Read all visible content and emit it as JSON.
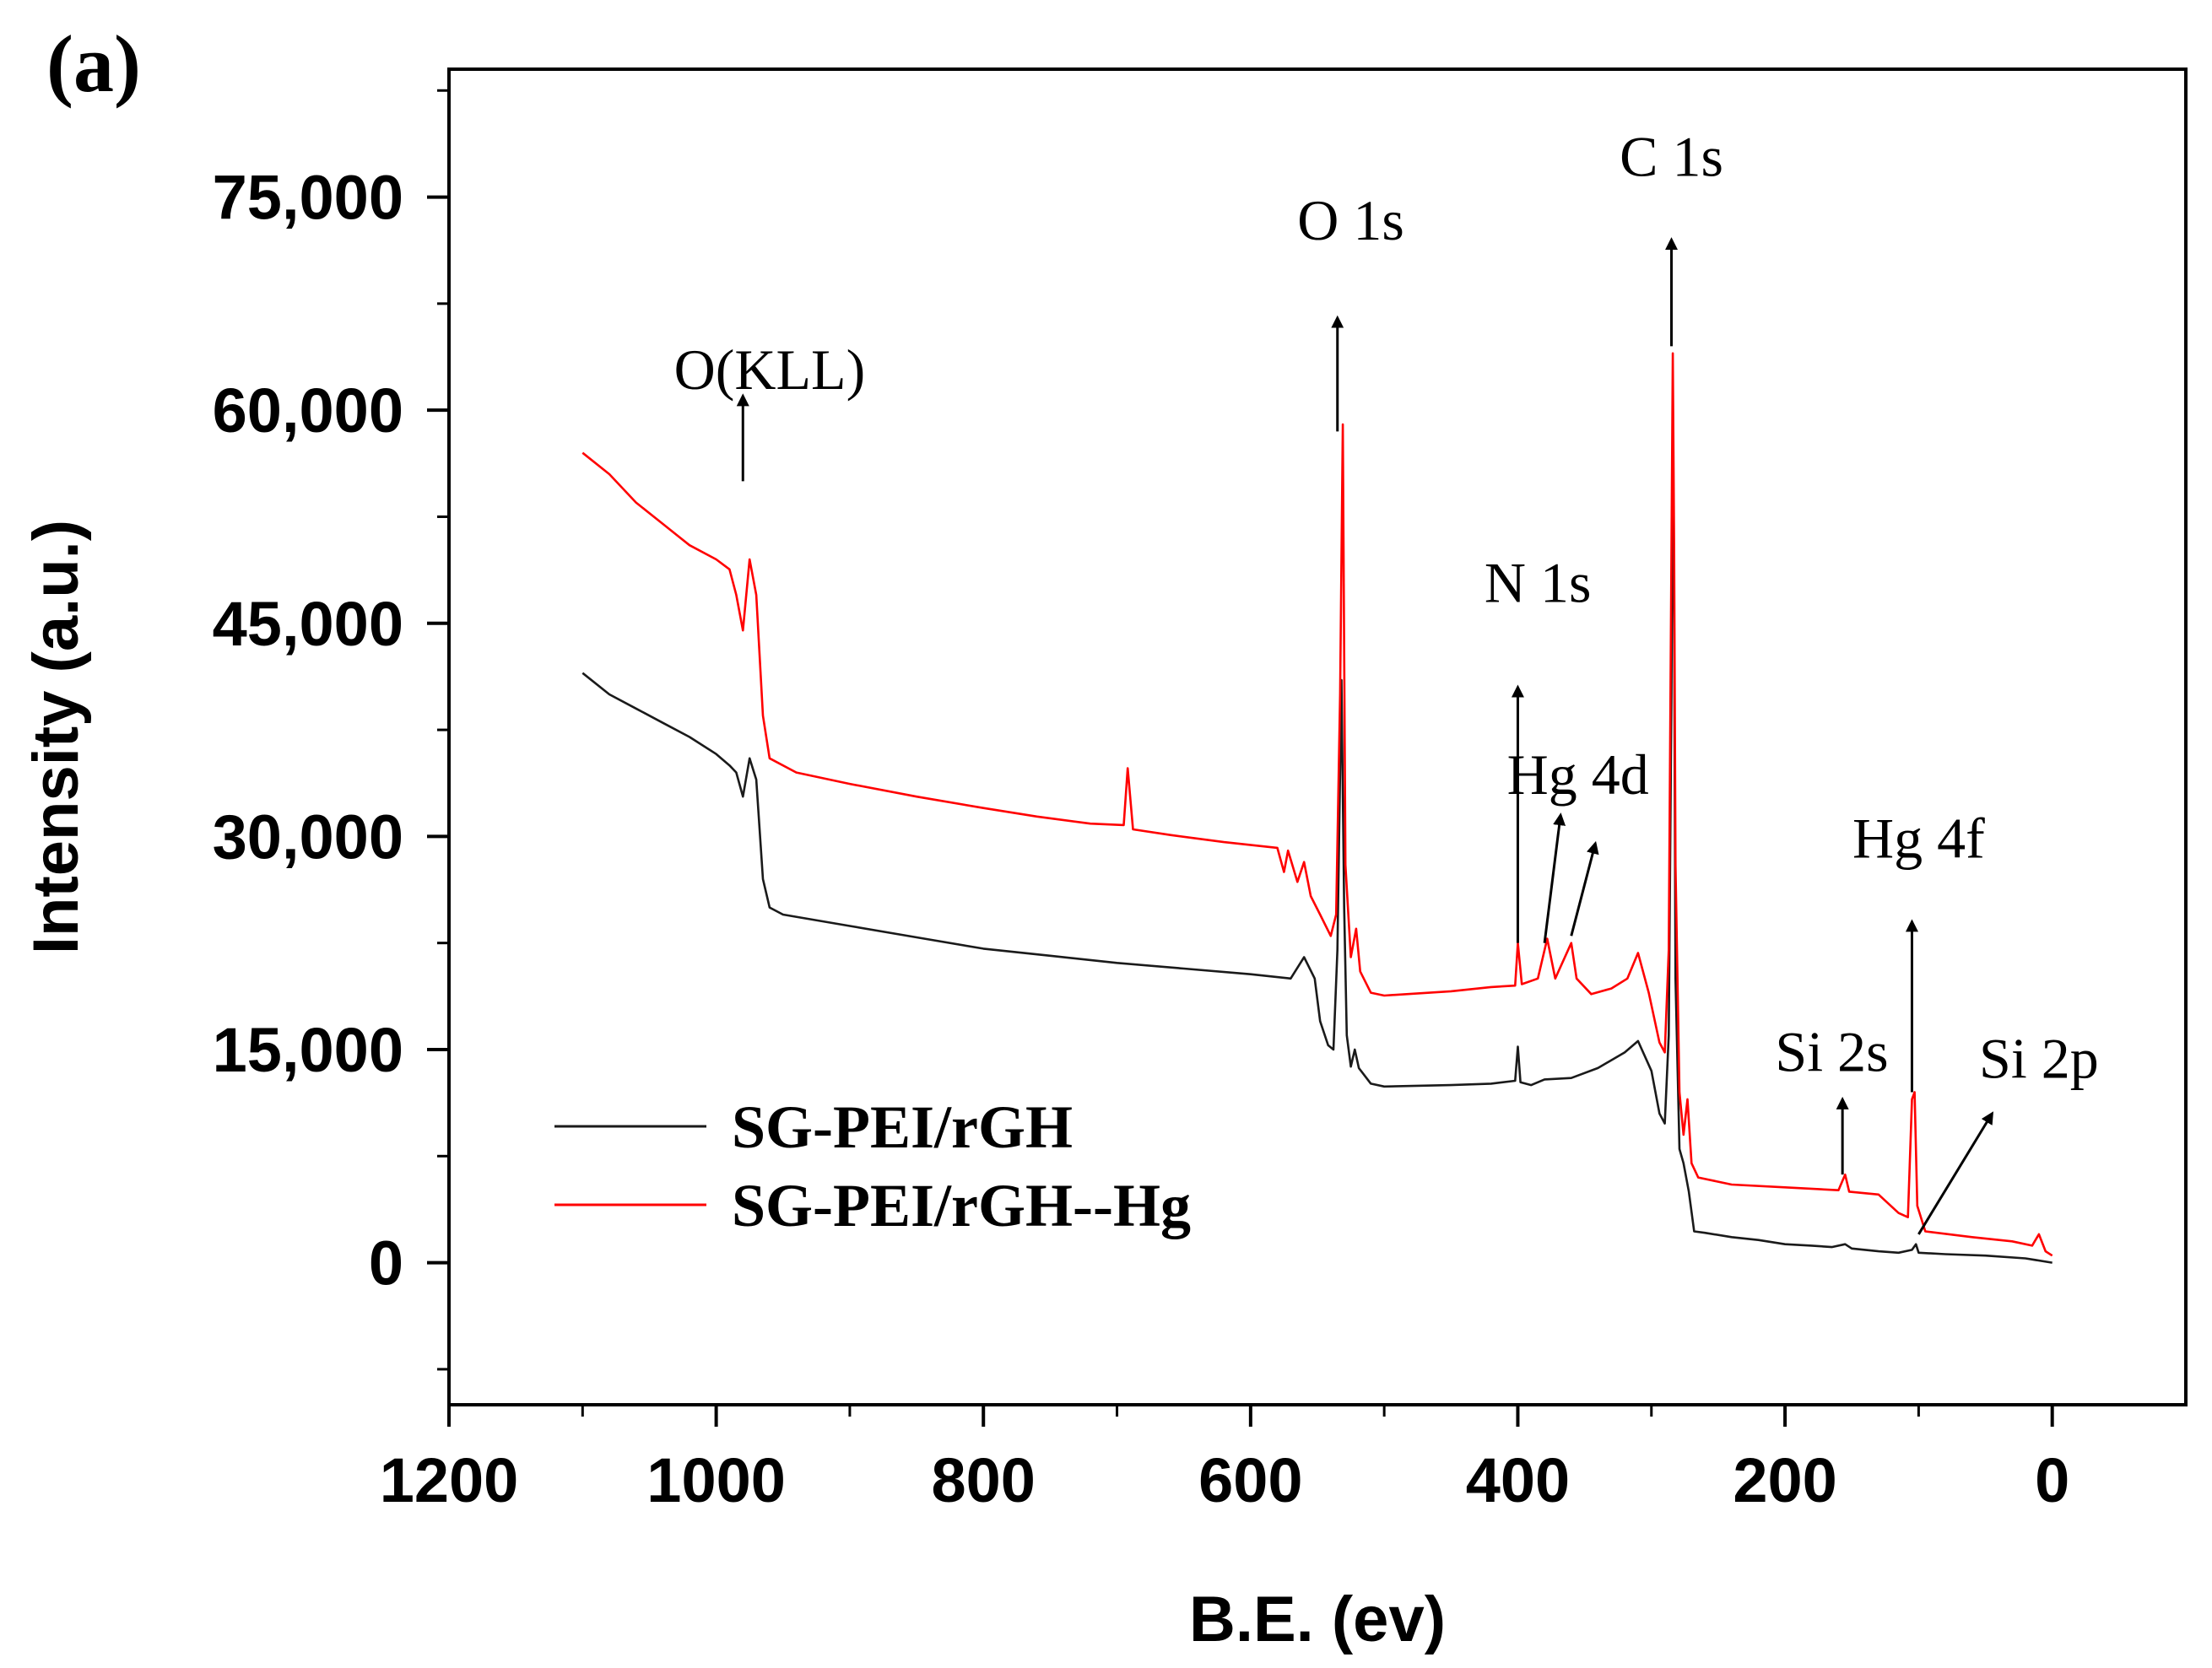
{
  "chart_data": {
    "type": "line",
    "panel_label": "(a)",
    "title": "",
    "xlabel": "B.E. (ev)",
    "ylabel": "Intensity (a.u.)",
    "xlim": [
      1200,
      -100
    ],
    "ylim": [
      -10000,
      84000
    ],
    "x_ticks": [
      {
        "value": 1200,
        "label": "1200"
      },
      {
        "value": 1000,
        "label": "1000"
      },
      {
        "value": 800,
        "label": "800"
      },
      {
        "value": 600,
        "label": "600"
      },
      {
        "value": 400,
        "label": "400"
      },
      {
        "value": 200,
        "label": "200"
      },
      {
        "value": 0,
        "label": "0"
      }
    ],
    "y_ticks": [
      {
        "value": 0,
        "label": "0"
      },
      {
        "value": 15000,
        "label": "15,000"
      },
      {
        "value": 30000,
        "label": "30,000"
      },
      {
        "value": 45000,
        "label": "45,000"
      },
      {
        "value": 60000,
        "label": "60,000"
      },
      {
        "value": 75000,
        "label": "75,000"
      }
    ],
    "legend_position": "bottom-left",
    "series": [
      {
        "name": "SG-PEI/rGH",
        "color": "#1a1a1a",
        "points": [
          [
            1100,
            41500
          ],
          [
            1080,
            40000
          ],
          [
            1060,
            39000
          ],
          [
            1040,
            38000
          ],
          [
            1020,
            37000
          ],
          [
            1000,
            35800
          ],
          [
            990,
            35000
          ],
          [
            985,
            34500
          ],
          [
            980,
            32800
          ],
          [
            975,
            35500
          ],
          [
            970,
            34000
          ],
          [
            965,
            27000
          ],
          [
            960,
            25000
          ],
          [
            950,
            24500
          ],
          [
            900,
            23700
          ],
          [
            850,
            22900
          ],
          [
            800,
            22100
          ],
          [
            750,
            21600
          ],
          [
            700,
            21100
          ],
          [
            650,
            20700
          ],
          [
            600,
            20300
          ],
          [
            570,
            20000
          ],
          [
            560,
            21500
          ],
          [
            552,
            20000
          ],
          [
            548,
            17000
          ],
          [
            542,
            15300
          ],
          [
            538,
            15000
          ],
          [
            535,
            22000
          ],
          [
            532,
            41000
          ],
          [
            530,
            25000
          ],
          [
            528,
            16000
          ],
          [
            525,
            13800
          ],
          [
            522,
            15000
          ],
          [
            519,
            13700
          ],
          [
            510,
            12600
          ],
          [
            500,
            12400
          ],
          [
            450,
            12500
          ],
          [
            420,
            12600
          ],
          [
            402,
            12800
          ],
          [
            400,
            15200
          ],
          [
            398,
            12700
          ],
          [
            390,
            12500
          ],
          [
            380,
            12900
          ],
          [
            360,
            13000
          ],
          [
            340,
            13700
          ],
          [
            320,
            14800
          ],
          [
            310,
            15600
          ],
          [
            300,
            13500
          ],
          [
            294,
            10500
          ],
          [
            290,
            9800
          ],
          [
            287,
            16000
          ],
          [
            285,
            40000
          ],
          [
            284,
            60000
          ],
          [
            283,
            45000
          ],
          [
            282,
            20000
          ],
          [
            279,
            8000
          ],
          [
            276,
            7000
          ],
          [
            272,
            5000
          ],
          [
            268,
            2200
          ],
          [
            260,
            2100
          ],
          [
            240,
            1800
          ],
          [
            220,
            1600
          ],
          [
            200,
            1300
          ],
          [
            180,
            1200
          ],
          [
            165,
            1100
          ],
          [
            155,
            1300
          ],
          [
            150,
            1000
          ],
          [
            130,
            800
          ],
          [
            115,
            700
          ],
          [
            105,
            900
          ],
          [
            102,
            1300
          ],
          [
            100,
            700
          ],
          [
            80,
            600
          ],
          [
            50,
            500
          ],
          [
            20,
            300
          ],
          [
            0,
            0
          ]
        ]
      },
      {
        "name": "SG-PEI/rGH--Hg",
        "color": "#ff0000",
        "points": [
          [
            1100,
            57000
          ],
          [
            1080,
            55500
          ],
          [
            1060,
            53500
          ],
          [
            1040,
            52000
          ],
          [
            1020,
            50500
          ],
          [
            1000,
            49500
          ],
          [
            990,
            48800
          ],
          [
            985,
            47000
          ],
          [
            980,
            44500
          ],
          [
            975,
            49500
          ],
          [
            970,
            47000
          ],
          [
            965,
            38500
          ],
          [
            960,
            35500
          ],
          [
            940,
            34500
          ],
          [
            900,
            33700
          ],
          [
            850,
            32800
          ],
          [
            800,
            32000
          ],
          [
            760,
            31400
          ],
          [
            720,
            30900
          ],
          [
            695,
            30800
          ],
          [
            692,
            34800
          ],
          [
            688,
            30500
          ],
          [
            660,
            30100
          ],
          [
            620,
            29600
          ],
          [
            580,
            29200
          ],
          [
            575,
            27500
          ],
          [
            572,
            29000
          ],
          [
            565,
            26800
          ],
          [
            560,
            28200
          ],
          [
            555,
            25800
          ],
          [
            548,
            24500
          ],
          [
            540,
            23000
          ],
          [
            536,
            24500
          ],
          [
            533,
            40000
          ],
          [
            531,
            59000
          ],
          [
            529,
            28000
          ],
          [
            525,
            21500
          ],
          [
            521,
            23500
          ],
          [
            518,
            20500
          ],
          [
            510,
            19000
          ],
          [
            500,
            18800
          ],
          [
            450,
            19100
          ],
          [
            420,
            19400
          ],
          [
            402,
            19500
          ],
          [
            400,
            22500
          ],
          [
            397,
            19600
          ],
          [
            385,
            20000
          ],
          [
            378,
            22800
          ],
          [
            372,
            20000
          ],
          [
            360,
            22500
          ],
          [
            356,
            20000
          ],
          [
            345,
            18900
          ],
          [
            330,
            19300
          ],
          [
            318,
            20000
          ],
          [
            310,
            21800
          ],
          [
            302,
            19000
          ],
          [
            294,
            15500
          ],
          [
            290,
            14800
          ],
          [
            287,
            22000
          ],
          [
            285,
            50000
          ],
          [
            284,
            64000
          ],
          [
            283,
            50000
          ],
          [
            282,
            28000
          ],
          [
            279,
            12000
          ],
          [
            276,
            9000
          ],
          [
            273,
            11500
          ],
          [
            270,
            7000
          ],
          [
            265,
            6000
          ],
          [
            240,
            5500
          ],
          [
            200,
            5300
          ],
          [
            160,
            5100
          ],
          [
            155,
            6200
          ],
          [
            152,
            5000
          ],
          [
            130,
            4800
          ],
          [
            115,
            3500
          ],
          [
            108,
            3200
          ],
          [
            105,
            11500
          ],
          [
            103,
            12000
          ],
          [
            101,
            4000
          ],
          [
            95,
            2200
          ],
          [
            60,
            1800
          ],
          [
            30,
            1500
          ],
          [
            15,
            1200
          ],
          [
            10,
            2000
          ],
          [
            5,
            800
          ],
          [
            0,
            500
          ]
        ]
      }
    ],
    "annotations": [
      {
        "label": "O(KLL)",
        "text_x": 960,
        "text_y": 61500,
        "arrows": [
          [
            [
              980,
              55000
            ],
            [
              980,
              61000
            ]
          ]
        ]
      },
      {
        "label": "O 1s",
        "text_x": 525,
        "text_y": 72000,
        "arrows": [
          [
            [
              535,
              58500
            ],
            [
              535,
              66500
            ]
          ]
        ]
      },
      {
        "label": "C 1s",
        "text_x": 285,
        "text_y": 76500,
        "arrows": [
          [
            [
              285,
              64500
            ],
            [
              285,
              72000
            ]
          ]
        ]
      },
      {
        "label": "N 1s",
        "text_x": 385,
        "text_y": 46500,
        "arrows": [
          [
            [
              400,
              22500
            ],
            [
              400,
              40500
            ]
          ]
        ]
      },
      {
        "label": "Hg 4d",
        "text_x": 355,
        "text_y": 33000,
        "arrows": [
          [
            [
              380,
              22500
            ],
            [
              368,
              31500
            ]
          ],
          [
            [
              360,
              23000
            ],
            [
              342,
              29500
            ]
          ]
        ]
      },
      {
        "label": "Hg 4f",
        "text_x": 100,
        "text_y": 28500,
        "arrows": [
          [
            [
              105,
              12000
            ],
            [
              105,
              24000
            ]
          ]
        ]
      },
      {
        "label": "Si 2s",
        "text_x": 165,
        "text_y": 13500,
        "arrows": [
          [
            [
              157,
              6200
            ],
            [
              157,
              11500
            ]
          ]
        ]
      },
      {
        "label": "Si 2p",
        "text_x": 10,
        "text_y": 13000,
        "arrows": [
          [
            [
              100,
              2000
            ],
            [
              45,
              10500
            ]
          ]
        ]
      }
    ]
  }
}
